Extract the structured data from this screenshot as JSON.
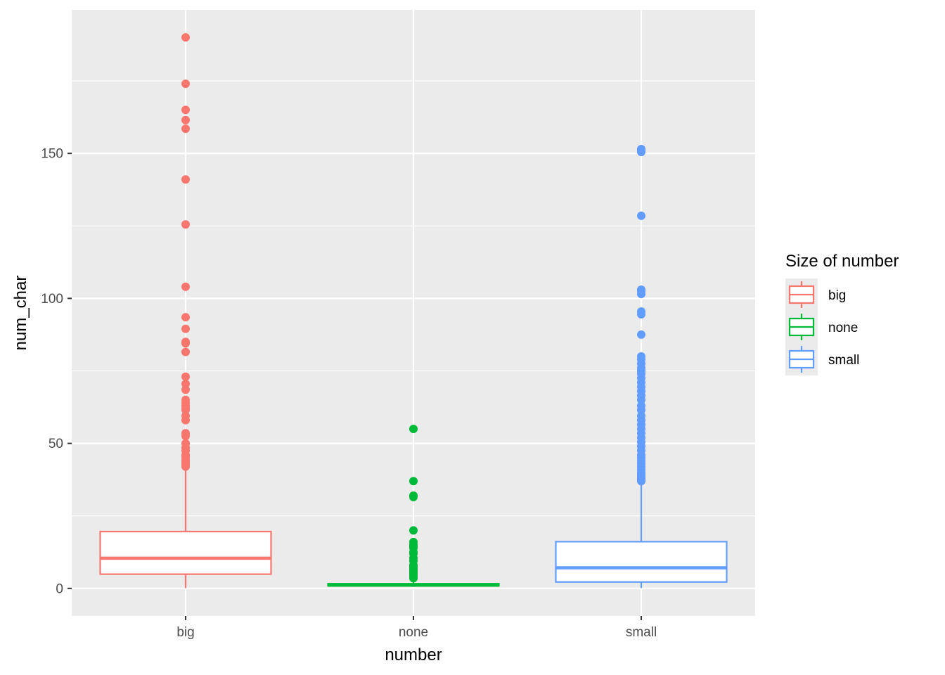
{
  "chart_data": {
    "type": "box",
    "xlabel": "number",
    "ylabel": "num_char",
    "categories": [
      "big",
      "none",
      "small"
    ],
    "ylim": [
      -9.5,
      199.5
    ],
    "y_ticks": [
      0,
      50,
      100,
      150
    ],
    "grid": true,
    "legend": {
      "title": "Size of number",
      "position": "right"
    },
    "series": [
      {
        "name": "big",
        "color": "#F8766D",
        "q1": 4.9,
        "median": 10.4,
        "q3": 19.6,
        "whisker_low": 0.1,
        "whisker_high": 41.5,
        "outliers": [
          190,
          174,
          165,
          161.5,
          158.5,
          141,
          125.5,
          104,
          93.5,
          89.5,
          85,
          84.5,
          81.5,
          73,
          70.5,
          68.5,
          65,
          64,
          63,
          62,
          61.5,
          59.5,
          58,
          53.5,
          52.5,
          50,
          48.5,
          47.5,
          46,
          45.5,
          44.5,
          44,
          43.5,
          43,
          42.5,
          42
        ]
      },
      {
        "name": "none",
        "color": "#00BA38",
        "q1": 0.9,
        "median": 1.1,
        "q3": 1.6,
        "whisker_low": 0.5,
        "whisker_high": 2.5,
        "outliers": [
          55,
          37,
          32,
          31.5,
          20,
          16,
          15,
          14.5,
          14,
          12.5,
          12,
          10.5,
          9.5,
          8,
          7.5,
          7,
          6.5,
          6,
          5.5,
          5,
          4.5,
          4,
          3.5
        ]
      },
      {
        "name": "small",
        "color": "#619CFF",
        "q1": 2.2,
        "median": 7.1,
        "q3": 16.1,
        "whisker_low": 0.1,
        "whisker_high": 36.5,
        "outliers": [
          151.5,
          151,
          150.5,
          128.5,
          103,
          102.5,
          101.5,
          95.5,
          94.5,
          87.5,
          80,
          79,
          77.5,
          76,
          75,
          74,
          72.5,
          71,
          69.5,
          68,
          66.5,
          65,
          63,
          61.5,
          59.5,
          58,
          56.5,
          55,
          53.5,
          52,
          50.5,
          49,
          47.5,
          46,
          45,
          44,
          43,
          42,
          41,
          40,
          39.5,
          39,
          38.5,
          38,
          37.5,
          37
        ]
      }
    ]
  }
}
